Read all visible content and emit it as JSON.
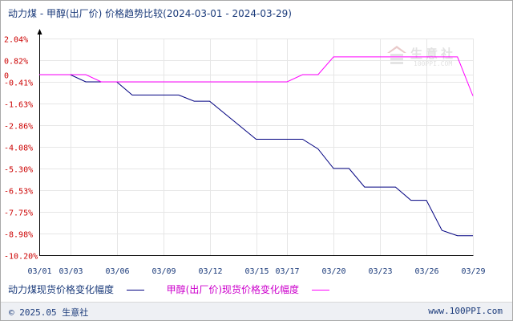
{
  "title": "动力煤 - 甲醇(出厂价) 价格趋势比较(2024-03-01 - 2024-03-29)",
  "footer": {
    "copyright": "© 2025.05 生意社",
    "url": "www.100PPI.com"
  },
  "watermark": {
    "text": "生意社",
    "url": "100PPI.COM"
  },
  "chart_data": {
    "type": "line",
    "x_tick_labels": [
      "03/01",
      "03/03",
      "03/06",
      "03/09",
      "03/12",
      "03/15",
      "03/17",
      "03/20",
      "03/23",
      "03/26",
      "03/29"
    ],
    "y_tick_labels": [
      "2.04%",
      "0.82%",
      "0",
      "-0.41%",
      "-1.63%",
      "-2.86%",
      "-4.08%",
      "-5.30%",
      "-6.53%",
      "-7.75%",
      "-8.98%",
      "-10.20%"
    ],
    "y_ticks": [
      2.04,
      0.82,
      0,
      -0.41,
      -1.63,
      -2.86,
      -4.08,
      -5.3,
      -6.53,
      -7.75,
      -8.98,
      -10.2
    ],
    "ylim": [
      -10.2,
      2.04
    ],
    "grid": true,
    "legend_position": "bottom",
    "series": [
      {
        "name": "动力煤现货价格变化幅度",
        "color": "#000080",
        "points": [
          [
            "03/01",
            0
          ],
          [
            "03/03",
            0
          ],
          [
            "03/04",
            -0.41
          ],
          [
            "03/06",
            -0.41
          ],
          [
            "03/07",
            -1.15
          ],
          [
            "03/10",
            -1.15
          ],
          [
            "03/11",
            -1.5
          ],
          [
            "03/12",
            -1.5
          ],
          [
            "03/15",
            -3.65
          ],
          [
            "03/18",
            -3.65
          ],
          [
            "03/19",
            -4.2
          ],
          [
            "03/20",
            -5.3
          ],
          [
            "03/21",
            -5.3
          ],
          [
            "03/22",
            -6.35
          ],
          [
            "03/24",
            -6.35
          ],
          [
            "03/25",
            -7.1
          ],
          [
            "03/26",
            -7.1
          ],
          [
            "03/27",
            -8.8
          ],
          [
            "03/28",
            -9.1
          ],
          [
            "03/29",
            -9.1
          ]
        ]
      },
      {
        "name": "甲醇(出厂价)现货价格变化幅度",
        "color": "#ff00ff",
        "points": [
          [
            "03/01",
            0
          ],
          [
            "03/03",
            0
          ],
          [
            "03/04",
            0
          ],
          [
            "03/05",
            -0.41
          ],
          [
            "03/17",
            -0.41
          ],
          [
            "03/18",
            0
          ],
          [
            "03/19",
            0
          ],
          [
            "03/20",
            1.0
          ],
          [
            "03/28",
            1.0
          ],
          [
            "03/29",
            -1.2
          ]
        ]
      }
    ]
  }
}
